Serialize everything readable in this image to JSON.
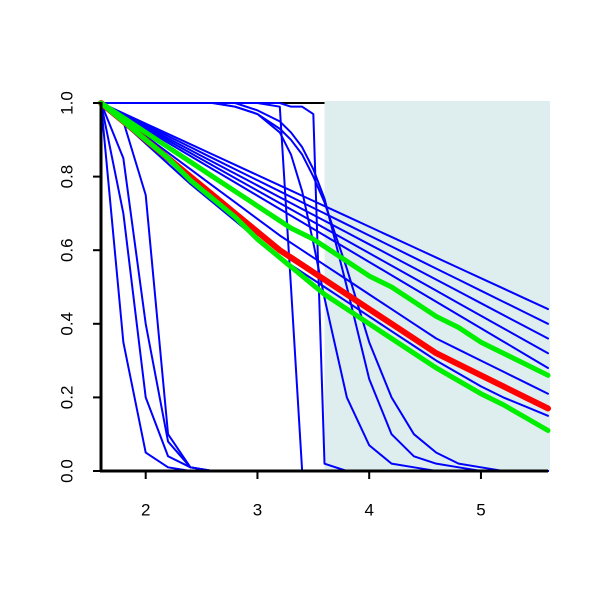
{
  "chart_data": {
    "type": "line",
    "x": [
      1.6,
      1.8,
      2.0,
      2.2,
      2.4,
      2.6,
      2.8,
      3.0,
      3.2,
      3.3,
      3.4,
      3.5,
      3.6,
      3.8,
      4.0,
      4.2,
      4.4,
      4.6,
      4.8,
      5.0,
      5.2,
      5.4,
      5.6
    ],
    "xlim": [
      1.6,
      5.6
    ],
    "ylim": [
      0,
      1
    ],
    "xticks": [
      2,
      3,
      4,
      5
    ],
    "yticks": [
      {
        "value": 0,
        "label": "0.0"
      },
      0.2,
      0.4,
      0.6,
      0.8,
      {
        "value": 1,
        "label": "1.0"
      }
    ],
    "grid": false,
    "shade": {
      "xlim": [
        3.6,
        5.6
      ],
      "color": "#deeded"
    },
    "series": [
      {
        "color": "#0000ff",
        "line_width": 2,
        "values": [
          1,
          0.972,
          0.944,
          0.916,
          0.888,
          0.86,
          0.832,
          0.804,
          0.776,
          0.762,
          0.748,
          0.734,
          0.72,
          0.692,
          0.664,
          0.636,
          0.608,
          0.58,
          0.552,
          0.524,
          0.496,
          0.468,
          0.44
        ]
      },
      {
        "color": "#0000ff",
        "line_width": 2,
        "values": [
          1,
          0.97,
          0.94,
          0.91,
          0.88,
          0.85,
          0.82,
          0.79,
          0.76,
          0.745,
          0.73,
          0.715,
          0.7,
          0.67,
          0.64,
          0.61,
          0.58,
          0.55,
          0.52,
          0.49,
          0.46,
          0.43,
          0.4
        ]
      },
      {
        "color": "#0000ff",
        "line_width": 2,
        "values": [
          1,
          0.968,
          0.936,
          0.904,
          0.872,
          0.84,
          0.808,
          0.776,
          0.744,
          0.728,
          0.712,
          0.696,
          0.68,
          0.648,
          0.616,
          0.584,
          0.552,
          0.52,
          0.488,
          0.456,
          0.424,
          0.392,
          0.36
        ]
      },
      {
        "color": "#0000ff",
        "line_width": 2,
        "values": [
          1,
          0.966,
          0.932,
          0.898,
          0.864,
          0.83,
          0.796,
          0.762,
          0.728,
          0.711,
          0.694,
          0.677,
          0.66,
          0.626,
          0.592,
          0.558,
          0.524,
          0.49,
          0.456,
          0.422,
          0.388,
          0.354,
          0.32
        ]
      },
      {
        "color": "#0000ff",
        "line_width": 2,
        "values": [
          1,
          0.964,
          0.928,
          0.892,
          0.856,
          0.82,
          0.784,
          0.748,
          0.712,
          0.694,
          0.676,
          0.658,
          0.64,
          0.604,
          0.568,
          0.532,
          0.496,
          0.46,
          0.424,
          0.388,
          0.352,
          0.316,
          0.28
        ]
      },
      {
        "color": "#0000ff",
        "line_width": 2,
        "values": [
          1,
          0.955,
          0.91,
          0.865,
          0.82,
          0.775,
          0.73,
          0.685,
          0.64,
          0.62,
          0.6,
          0.58,
          0.56,
          0.52,
          0.48,
          0.44,
          0.4,
          0.36,
          0.33,
          0.3,
          0.27,
          0.24,
          0.21
        ]
      },
      {
        "color": "#0000ff",
        "line_width": 2,
        "values": [
          1,
          0.945,
          0.89,
          0.835,
          0.78,
          0.73,
          0.68,
          0.63,
          0.58,
          0.56,
          0.54,
          0.52,
          0.5,
          0.46,
          0.42,
          0.38,
          0.34,
          0.3,
          0.265,
          0.23,
          0.2,
          0.175,
          0.15
        ]
      },
      {
        "color": "#0000ff",
        "line_width": 2,
        "values": [
          1,
          0.35,
          0.05,
          0.01,
          0,
          0,
          0,
          0,
          0,
          0,
          0,
          0,
          0,
          0,
          0,
          0,
          0,
          0,
          0,
          0,
          0,
          0,
          0
        ]
      },
      {
        "color": "#0000ff",
        "line_width": 2,
        "values": [
          1,
          0.7,
          0.2,
          0.04,
          0.01,
          0,
          0,
          0,
          0,
          0,
          0,
          0,
          0,
          0,
          0,
          0,
          0,
          0,
          0,
          0,
          0,
          0,
          0
        ]
      },
      {
        "color": "#0000ff",
        "line_width": 2,
        "values": [
          1,
          0.85,
          0.4,
          0.08,
          0.01,
          0,
          0,
          0,
          0,
          0,
          0,
          0,
          0,
          0,
          0,
          0,
          0,
          0,
          0,
          0,
          0,
          0,
          0
        ]
      },
      {
        "color": "#0000ff",
        "line_width": 2,
        "values": [
          1,
          0.95,
          0.75,
          0.1,
          0.01,
          0,
          0,
          0,
          0,
          0,
          0,
          0,
          0,
          0,
          0,
          0,
          0,
          0,
          0,
          0,
          0,
          0,
          0
        ]
      },
      {
        "color": "#0000ff",
        "line_width": 2,
        "values": [
          1,
          1,
          1,
          1,
          1,
          1,
          1,
          1,
          0.99,
          0.5,
          0,
          0,
          0,
          0,
          0,
          0,
          0,
          0,
          0,
          0,
          0,
          0,
          0
        ]
      },
      {
        "color": "#0000ff",
        "line_width": 2,
        "values": [
          1,
          1,
          1,
          1,
          1,
          1,
          1,
          1,
          1,
          0.99,
          0.99,
          0.97,
          0.02,
          0,
          0,
          0,
          0,
          0,
          0,
          0,
          0,
          0,
          0
        ]
      },
      {
        "color": "#0000ff",
        "line_width": 2,
        "values": [
          1,
          1,
          1,
          1,
          1,
          1,
          0.99,
          0.97,
          0.92,
          0.86,
          0.76,
          0.62,
          0.47,
          0.2,
          0.07,
          0.02,
          0.01,
          0,
          0,
          0,
          0,
          0,
          0
        ]
      },
      {
        "color": "#0000ff",
        "line_width": 2,
        "values": [
          1,
          1,
          1,
          1,
          1,
          1,
          1,
          0.98,
          0.95,
          0.92,
          0.88,
          0.82,
          0.74,
          0.5,
          0.25,
          0.1,
          0.04,
          0.02,
          0.01,
          0,
          0,
          0,
          0
        ]
      },
      {
        "color": "#0000ff",
        "line_width": 2,
        "values": [
          1,
          1,
          1,
          1,
          1,
          1,
          0.99,
          0.97,
          0.93,
          0.9,
          0.86,
          0.8,
          0.73,
          0.55,
          0.35,
          0.2,
          0.1,
          0.05,
          0.02,
          0.01,
          0,
          0,
          0
        ]
      },
      {
        "color": "#ff0000",
        "line_width": 6,
        "values": [
          1,
          0.95,
          0.9,
          0.85,
          0.8,
          0.75,
          0.7,
          0.65,
          0.6,
          0.58,
          0.56,
          0.54,
          0.52,
          0.48,
          0.44,
          0.4,
          0.36,
          0.32,
          0.29,
          0.26,
          0.23,
          0.2,
          0.17
        ]
      },
      {
        "color": "#00ee00",
        "line_width": 5,
        "values": [
          1,
          0.96,
          0.92,
          0.88,
          0.84,
          0.8,
          0.76,
          0.72,
          0.68,
          0.66,
          0.645,
          0.63,
          0.61,
          0.57,
          0.53,
          0.5,
          0.46,
          0.42,
          0.39,
          0.35,
          0.32,
          0.29,
          0.26
        ]
      },
      {
        "color": "#00ee00",
        "line_width": 5,
        "values": [
          1,
          0.95,
          0.9,
          0.85,
          0.79,
          0.74,
          0.69,
          0.63,
          0.58,
          0.555,
          0.53,
          0.505,
          0.48,
          0.44,
          0.4,
          0.36,
          0.32,
          0.28,
          0.245,
          0.21,
          0.18,
          0.145,
          0.11
        ]
      }
    ]
  }
}
